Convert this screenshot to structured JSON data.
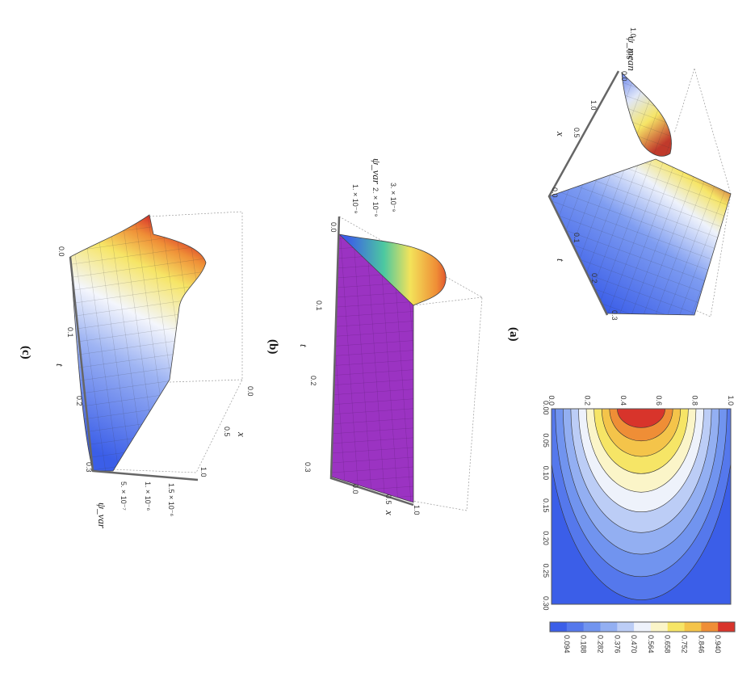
{
  "chart_data": [
    {
      "id": "a",
      "panel_label": "(a)",
      "type": "surface",
      "zlabel": "ψ_mean",
      "xlabel": "x",
      "tlabel": "t",
      "x_ticks": [
        "0.0",
        "0.5",
        "1.0"
      ],
      "t_ticks": [
        "0.0",
        "0.1",
        "0.2",
        "0.3"
      ],
      "z_ticks": [
        "0.0",
        "0.5",
        "1.0"
      ],
      "x_range": [
        0,
        1
      ],
      "t_range": [
        0,
        0.3
      ],
      "z_range": [
        0,
        1
      ]
    },
    {
      "id": "a-contour",
      "type": "heatmap",
      "subtype": "contour",
      "t_ticks": [
        "0.00",
        "0.05",
        "0.10",
        "0.15",
        "0.20",
        "0.25",
        "0.30"
      ],
      "x_ticks": [
        "0.0",
        "0.2",
        "0.4",
        "0.6",
        "0.8",
        "1.0"
      ],
      "t_range": [
        0,
        0.3
      ],
      "x_range": [
        0,
        1
      ],
      "levels": [
        "0.094",
        "0.188",
        "0.282",
        "0.376",
        "0.470",
        "0.564",
        "0.658",
        "0.752",
        "0.846",
        "0.940"
      ],
      "colors": [
        "#3b5ee8",
        "#5578ec",
        "#7194ef",
        "#93aff2",
        "#bccdf6",
        "#eef2fb",
        "#fbf5c8",
        "#f6e566",
        "#f4c44a",
        "#ef8e36",
        "#d8342b"
      ]
    },
    {
      "id": "b",
      "panel_label": "(b)",
      "type": "surface",
      "zlabel": "ψ_var",
      "xlabel": "x",
      "tlabel": "t",
      "x_ticks": [
        "0.0",
        "0.5",
        "1.0"
      ],
      "t_ticks": [
        "0.0",
        "0.1",
        "0.2",
        "0.3"
      ],
      "z_ticks": [
        "0",
        "1. × 10⁻⁹",
        "2. × 10⁻⁹",
        "3. × 10⁻⁹"
      ],
      "z_range": [
        0,
        3e-09
      ],
      "surface_color": "#9b33c2"
    },
    {
      "id": "c",
      "panel_label": "(c)",
      "type": "surface",
      "zlabel": "ψ_var",
      "xlabel": "x",
      "tlabel": "t",
      "x_ticks": [
        "0.0",
        "0.5",
        "1.0"
      ],
      "t_ticks": [
        "0.0",
        "0.1",
        "0.2",
        "0.3"
      ],
      "z_ticks": [
        "0",
        "5. × 10⁻⁷",
        "1. × 10⁻⁶",
        "1.5 × 10⁻⁶"
      ],
      "z_range": [
        0,
        1.5e-06
      ]
    }
  ]
}
